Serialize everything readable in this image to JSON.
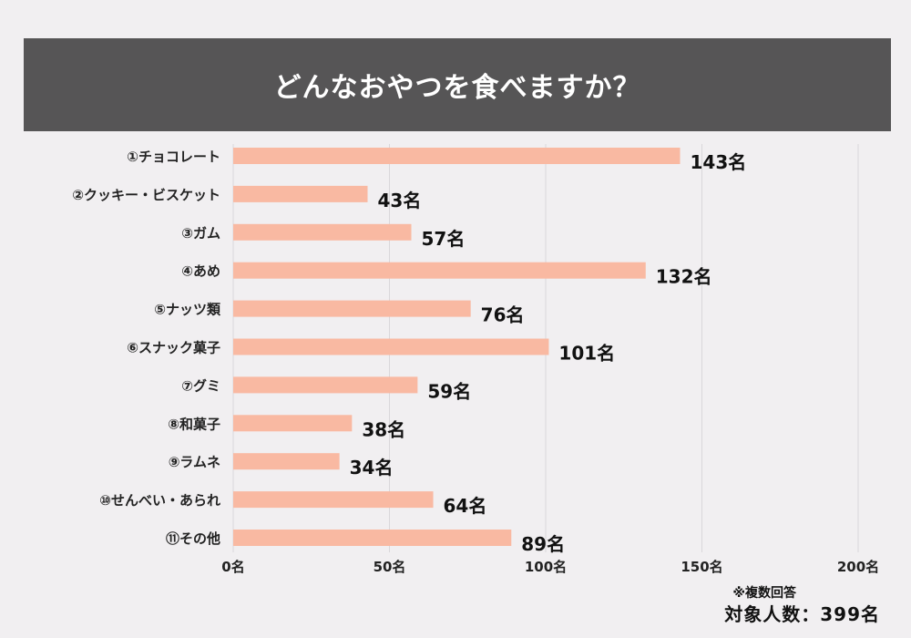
{
  "title": "どんなおやつを食べますか？",
  "chart_data": {
    "type": "bar",
    "orientation": "horizontal",
    "categories": [
      "①チョコレート",
      "②クッキー・ビスケット",
      "③ガム",
      "④あめ",
      "⑤ナッツ類",
      "⑥スナック菓子",
      "⑦グミ",
      "⑧和菓子",
      "⑨ラムネ",
      "⑩せんべい・あられ",
      "⑪その他"
    ],
    "values": [
      143,
      43,
      57,
      132,
      76,
      101,
      59,
      38,
      34,
      64,
      89
    ],
    "value_labels": [
      "143名",
      "43名",
      "57名",
      "132名",
      "76名",
      "101名",
      "59名",
      "38名",
      "34名",
      "64名",
      "89名"
    ],
    "xlim": [
      0,
      200
    ],
    "x_ticks": [
      0,
      50,
      100,
      150,
      200
    ],
    "x_tick_labels": [
      "0名",
      "50名",
      "100名",
      "150名",
      "200名"
    ],
    "grid": true,
    "bar_color": "#f9b9a2"
  },
  "footnote": "※複数回答",
  "total_label": "対象人数：399名"
}
